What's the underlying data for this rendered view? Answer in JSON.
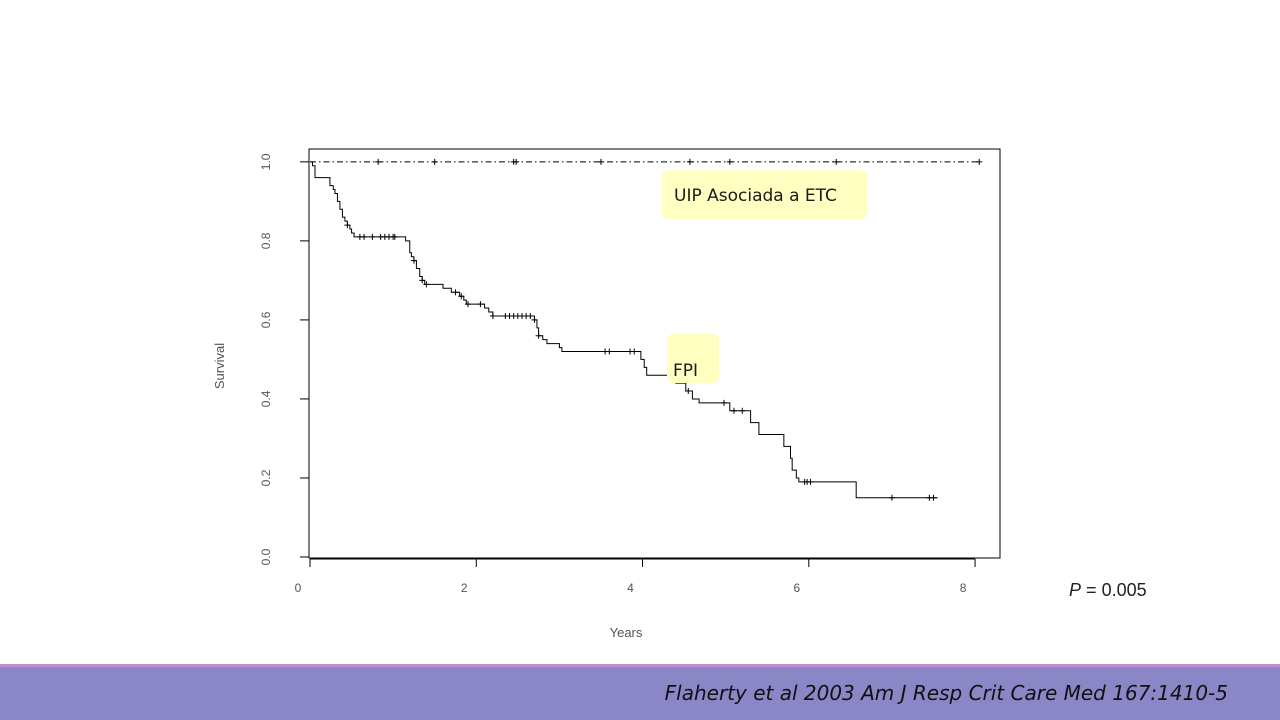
{
  "colors": {
    "footer_band": "#8b86c6",
    "footer_line": "#c08fcf",
    "annotation_fill": "#ffffc2",
    "curve": "#000000"
  },
  "p_value": {
    "letter": "P",
    "equals": "=",
    "value": "0.005"
  },
  "citation": "Flaherty et al 2003 Am J Resp Crit Care Med 167:1410-5",
  "chart_data": {
    "type": "line",
    "title": "",
    "xlabel": "Years",
    "ylabel": "Survival",
    "xlim": [
      0,
      8.3
    ],
    "ylim": [
      0,
      1.03
    ],
    "x_ticks": [
      0,
      2,
      4,
      6,
      8
    ],
    "x_tick_labels": [
      "0",
      "2",
      "4",
      "6",
      "8"
    ],
    "y_ticks": [
      0,
      0.2,
      0.4,
      0.6,
      0.8,
      1.0
    ],
    "y_tick_labels": [
      "0.0",
      "0.2",
      "0.4",
      "0.6",
      "0.8",
      "1.0"
    ],
    "grid": false,
    "series": [
      {
        "name": "UIP Asociada a ETC",
        "label": "UIP Asociada a ETC",
        "style": "dash-dot",
        "steps": [
          [
            0,
            1.0
          ],
          [
            8.05,
            1.0
          ]
        ],
        "censor": [
          0.82,
          1.5,
          2.45,
          2.48,
          3.5,
          4.57,
          5.05,
          6.33,
          8.05
        ]
      },
      {
        "name": "FPI",
        "label": "FPI",
        "style": "solid",
        "steps": [
          [
            0,
            1.0
          ],
          [
            0.03,
            0.99
          ],
          [
            0.06,
            0.96
          ],
          [
            0.2,
            0.96
          ],
          [
            0.24,
            0.94
          ],
          [
            0.28,
            0.93
          ],
          [
            0.3,
            0.92
          ],
          [
            0.33,
            0.9
          ],
          [
            0.36,
            0.88
          ],
          [
            0.39,
            0.86
          ],
          [
            0.42,
            0.85
          ],
          [
            0.45,
            0.84
          ],
          [
            0.48,
            0.83
          ],
          [
            0.5,
            0.82
          ],
          [
            0.53,
            0.81
          ],
          [
            1.15,
            0.8
          ],
          [
            1.2,
            0.77
          ],
          [
            1.22,
            0.76
          ],
          [
            1.25,
            0.75
          ],
          [
            1.28,
            0.73
          ],
          [
            1.32,
            0.71
          ],
          [
            1.35,
            0.7
          ],
          [
            1.38,
            0.69
          ],
          [
            1.6,
            0.68
          ],
          [
            1.7,
            0.67
          ],
          [
            1.8,
            0.66
          ],
          [
            1.85,
            0.65
          ],
          [
            1.88,
            0.64
          ],
          [
            2.1,
            0.63
          ],
          [
            2.15,
            0.62
          ],
          [
            2.2,
            0.61
          ],
          [
            2.7,
            0.6
          ],
          [
            2.73,
            0.58
          ],
          [
            2.75,
            0.56
          ],
          [
            2.8,
            0.55
          ],
          [
            2.85,
            0.54
          ],
          [
            3.0,
            0.53
          ],
          [
            3.03,
            0.52
          ],
          [
            3.98,
            0.5
          ],
          [
            4.02,
            0.48
          ],
          [
            4.05,
            0.46
          ],
          [
            4.4,
            0.44
          ],
          [
            4.52,
            0.42
          ],
          [
            4.6,
            0.4
          ],
          [
            4.68,
            0.39
          ],
          [
            5.05,
            0.37
          ],
          [
            5.3,
            0.34
          ],
          [
            5.4,
            0.31
          ],
          [
            5.7,
            0.28
          ],
          [
            5.78,
            0.25
          ],
          [
            5.8,
            0.22
          ],
          [
            5.85,
            0.2
          ],
          [
            5.88,
            0.19
          ],
          [
            6.57,
            0.15
          ],
          [
            7.55,
            0.15
          ]
        ],
        "censor": [
          0.45,
          0.6,
          0.65,
          0.75,
          0.85,
          0.9,
          0.95,
          1.0,
          1.02,
          1.25,
          1.35,
          1.4,
          1.75,
          1.82,
          1.9,
          2.05,
          2.2,
          2.35,
          2.4,
          2.45,
          2.5,
          2.55,
          2.6,
          2.65,
          2.7,
          2.75,
          3.55,
          3.6,
          3.85,
          3.9,
          4.55,
          4.98,
          5.1,
          5.2,
          5.95,
          5.98,
          6.02,
          7.0,
          7.45,
          7.5
        ]
      }
    ]
  }
}
